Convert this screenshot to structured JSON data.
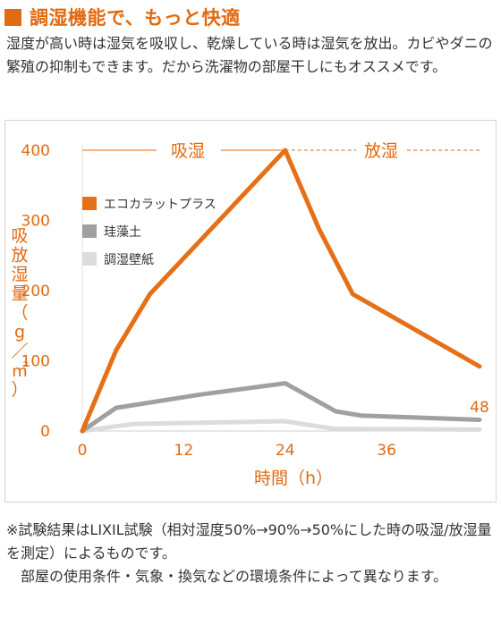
{
  "heading": {
    "title": "調湿機能で、もっと快適"
  },
  "intro": "湿度が高い時は湿気を吸収し、乾燥している時は湿気を放出。カビやダニの繁殖の抑制もできます。だから洗濯物の部屋干しにもオススメです。",
  "colors": {
    "brand": "#e26a10",
    "eco": "#e57018",
    "keisodo": "#a0a0a0",
    "wallpaper": "#dcdcdc",
    "text": "#333333"
  },
  "chart_data": {
    "type": "line",
    "xlabel": "時間（h）",
    "ylabel": "吸放湿量（g／㎡）",
    "xlim": [
      0,
      47
    ],
    "ylim": [
      0,
      400
    ],
    "xticks": [
      0,
      12,
      24,
      36
    ],
    "yticks": [
      0,
      100,
      200,
      300,
      400
    ],
    "phase_labels": [
      {
        "label": "吸湿",
        "from": 0,
        "to": 24
      },
      {
        "label": "放湿",
        "from": 24,
        "to": 47
      }
    ],
    "legend_placement": "top-left",
    "series": [
      {
        "name": "エコカラットプラス",
        "color": "#e57018",
        "x": [
          0,
          4,
          8,
          24,
          28,
          32,
          47
        ],
        "y": [
          0,
          115,
          195,
          400,
          288,
          195,
          92
        ]
      },
      {
        "name": "珪藻土",
        "color": "#a0a0a0",
        "x": [
          0,
          4,
          14,
          24,
          27,
          30,
          33,
          47
        ],
        "y": [
          0,
          33,
          52,
          68,
          48,
          28,
          22,
          16
        ]
      },
      {
        "name": "調湿壁紙",
        "color": "#dcdcdc",
        "x": [
          0,
          6,
          24,
          26,
          30,
          47
        ],
        "y": [
          0,
          10,
          14,
          10,
          3,
          2
        ]
      }
    ],
    "end_label": "48"
  },
  "notes": [
    "※試験結果はLIXIL試験（相対湿度50%→90%→50%にした時の吸湿/放湿量を測定）によるものです。",
    "部屋の使用条件・気象・換気などの環境条件によって異なります。"
  ]
}
